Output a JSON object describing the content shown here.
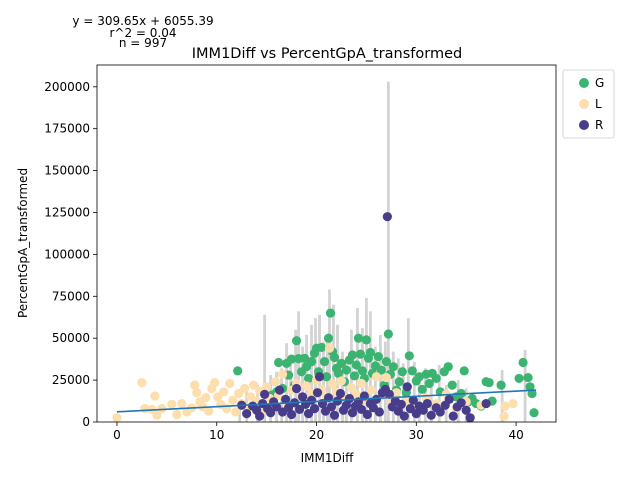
{
  "chart_data": {
    "type": "scatter",
    "title": "IMM1Diff vs PercentGpA_transformed",
    "xlabel": "IMM1Diff",
    "ylabel": "PercentGpA_transformed",
    "xlim": [
      -2,
      44
    ],
    "ylim": [
      0,
      213000
    ],
    "xticks": [
      0,
      10,
      20,
      30,
      40
    ],
    "yticks": [
      0,
      25000,
      50000,
      75000,
      100000,
      125000,
      150000,
      175000,
      200000
    ],
    "annotations": [
      "y = 309.65x + 6055.39",
      "r^2 = 0.04",
      "n = 997"
    ],
    "regression": {
      "slope": 309.65,
      "intercept": 6055.39,
      "x_range": [
        0,
        42
      ],
      "color": "#1f77b4"
    },
    "legend": {
      "placement": "outside-right",
      "entries": [
        "G",
        "L",
        "R"
      ]
    },
    "colors": {
      "G": "#3cb371",
      "L": "#ffdead",
      "R": "#483d8b",
      "bars": "#d3d3d3"
    },
    "bars": [
      [
        12.3,
        12000
      ],
      [
        13.0,
        18000
      ],
      [
        14.1,
        22000
      ],
      [
        14.8,
        64000
      ],
      [
        15.4,
        28000
      ],
      [
        16.0,
        30000
      ],
      [
        16.5,
        32000
      ],
      [
        17.0,
        47000
      ],
      [
        17.4,
        38000
      ],
      [
        17.9,
        55000
      ],
      [
        18.2,
        66000
      ],
      [
        18.6,
        45000
      ],
      [
        19.0,
        52000
      ],
      [
        19.5,
        58000
      ],
      [
        19.9,
        62000
      ],
      [
        20.3,
        64000
      ],
      [
        20.7,
        48000
      ],
      [
        21.1,
        52000
      ],
      [
        21.3,
        79000
      ],
      [
        21.7,
        70000
      ],
      [
        22.1,
        58000
      ],
      [
        22.6,
        42000
      ],
      [
        23.0,
        38000
      ],
      [
        23.5,
        55000
      ],
      [
        24.1,
        68000
      ],
      [
        24.6,
        56000
      ],
      [
        25.0,
        74000
      ],
      [
        25.4,
        66000
      ],
      [
        25.9,
        45000
      ],
      [
        26.4,
        52000
      ],
      [
        26.9,
        48000
      ],
      [
        27.2,
        203000
      ],
      [
        27.7,
        42000
      ],
      [
        28.2,
        38000
      ],
      [
        28.7,
        35000
      ],
      [
        29.2,
        62000
      ],
      [
        29.8,
        36000
      ],
      [
        30.3,
        28000
      ],
      [
        30.9,
        32000
      ],
      [
        31.5,
        25000
      ],
      [
        32.3,
        34000
      ],
      [
        33.0,
        22000
      ],
      [
        34.2,
        25000
      ],
      [
        35.0,
        20000
      ],
      [
        38.6,
        31000
      ],
      [
        40.9,
        43000
      ]
    ],
    "series": [
      {
        "name": "G",
        "points": [
          [
            12.1,
            30500
          ],
          [
            15.5,
            16000
          ],
          [
            16.0,
            18000
          ],
          [
            16.2,
            35500
          ],
          [
            16.6,
            20000
          ],
          [
            17.0,
            35000
          ],
          [
            17.2,
            28000
          ],
          [
            17.5,
            37500
          ],
          [
            17.8,
            22000
          ],
          [
            18.0,
            48500
          ],
          [
            18.2,
            37800
          ],
          [
            18.5,
            30000
          ],
          [
            18.8,
            38000
          ],
          [
            19.0,
            33000
          ],
          [
            19.2,
            26000
          ],
          [
            19.5,
            36000
          ],
          [
            19.8,
            41000
          ],
          [
            20.0,
            44000
          ],
          [
            20.2,
            30000
          ],
          [
            20.5,
            44500
          ],
          [
            20.8,
            36000
          ],
          [
            21.0,
            27000
          ],
          [
            21.2,
            50000
          ],
          [
            21.4,
            65000
          ],
          [
            21.6,
            42000
          ],
          [
            21.8,
            38500
          ],
          [
            22.0,
            32000
          ],
          [
            22.2,
            29000
          ],
          [
            22.5,
            35000
          ],
          [
            22.8,
            24000
          ],
          [
            23.0,
            31000
          ],
          [
            23.3,
            37000
          ],
          [
            23.6,
            40000
          ],
          [
            23.8,
            27500
          ],
          [
            24.0,
            34000
          ],
          [
            24.2,
            50000
          ],
          [
            24.4,
            40500
          ],
          [
            24.6,
            30500
          ],
          [
            24.8,
            26000
          ],
          [
            25.0,
            49000
          ],
          [
            25.2,
            38000
          ],
          [
            25.4,
            41500
          ],
          [
            25.6,
            29000
          ],
          [
            25.9,
            33500
          ],
          [
            26.2,
            39000
          ],
          [
            26.5,
            31000
          ],
          [
            26.8,
            22000
          ],
          [
            27.0,
            36000
          ],
          [
            27.2,
            52500
          ],
          [
            27.4,
            28500
          ],
          [
            27.7,
            33000
          ],
          [
            28.0,
            19000
          ],
          [
            28.3,
            24000
          ],
          [
            28.6,
            30000
          ],
          [
            29.0,
            17500
          ],
          [
            29.3,
            39500
          ],
          [
            29.6,
            30500
          ],
          [
            30.0,
            24500
          ],
          [
            30.3,
            27000
          ],
          [
            30.6,
            19500
          ],
          [
            31.0,
            28500
          ],
          [
            31.3,
            23000
          ],
          [
            31.6,
            29000
          ],
          [
            32.0,
            26000
          ],
          [
            32.4,
            18000
          ],
          [
            32.8,
            30000
          ],
          [
            33.2,
            33000
          ],
          [
            33.6,
            22000
          ],
          [
            34.0,
            15000
          ],
          [
            34.5,
            17000
          ],
          [
            34.8,
            30500
          ],
          [
            35.2,
            12000
          ],
          [
            35.6,
            14000
          ],
          [
            36.0,
            11000
          ],
          [
            36.5,
            9500
          ],
          [
            37.0,
            24000
          ],
          [
            37.3,
            23500
          ],
          [
            37.6,
            12500
          ],
          [
            38.5,
            22000
          ],
          [
            40.3,
            26000
          ],
          [
            40.7,
            35500
          ],
          [
            41.2,
            26500
          ],
          [
            41.4,
            21000
          ],
          [
            41.6,
            17000
          ],
          [
            41.8,
            5500
          ]
        ]
      },
      {
        "name": "L",
        "points": [
          [
            0.0,
            2500
          ],
          [
            2.5,
            23500
          ],
          [
            2.8,
            8000
          ],
          [
            3.5,
            7500
          ],
          [
            3.8,
            15500
          ],
          [
            4.0,
            4000
          ],
          [
            4.5,
            8000
          ],
          [
            5.5,
            10500
          ],
          [
            6.0,
            4500
          ],
          [
            6.5,
            11000
          ],
          [
            7.0,
            6000
          ],
          [
            7.5,
            8500
          ],
          [
            7.8,
            22000
          ],
          [
            8.0,
            17500
          ],
          [
            8.3,
            12000
          ],
          [
            8.6,
            9000
          ],
          [
            8.9,
            14500
          ],
          [
            9.2,
            6500
          ],
          [
            9.5,
            20000
          ],
          [
            9.8,
            23500
          ],
          [
            10.1,
            15000
          ],
          [
            10.4,
            10500
          ],
          [
            10.7,
            18000
          ],
          [
            11.0,
            8000
          ],
          [
            11.3,
            23000
          ],
          [
            11.6,
            13000
          ],
          [
            11.9,
            6000
          ],
          [
            12.2,
            17000
          ],
          [
            12.5,
            11000
          ],
          [
            12.8,
            20000
          ],
          [
            13.1,
            8500
          ],
          [
            13.4,
            15000
          ],
          [
            13.7,
            22000
          ],
          [
            14.0,
            12500
          ],
          [
            14.3,
            18500
          ],
          [
            14.6,
            7000
          ],
          [
            15.0,
            21000
          ],
          [
            15.3,
            14000
          ],
          [
            15.6,
            9500
          ],
          [
            15.9,
            24000
          ],
          [
            16.2,
            16000
          ],
          [
            16.6,
            28500
          ],
          [
            17.0,
            12000
          ],
          [
            17.5,
            19000
          ],
          [
            18.0,
            23000
          ],
          [
            18.5,
            14500
          ],
          [
            19.0,
            21500
          ],
          [
            19.5,
            17000
          ],
          [
            20.0,
            25000
          ],
          [
            20.5,
            19500
          ],
          [
            21.0,
            15000
          ],
          [
            21.3,
            44000
          ],
          [
            21.6,
            22500
          ],
          [
            22.0,
            18000
          ],
          [
            22.5,
            24500
          ],
          [
            23.0,
            14000
          ],
          [
            23.5,
            20500
          ],
          [
            24.0,
            16500
          ],
          [
            24.5,
            23000
          ],
          [
            25.0,
            12500
          ],
          [
            25.5,
            19000
          ],
          [
            26.0,
            27000
          ],
          [
            26.5,
            15500
          ],
          [
            27.0,
            26500
          ],
          [
            27.5,
            13000
          ],
          [
            28.0,
            17500
          ],
          [
            29.0,
            12000
          ],
          [
            30.0,
            9500
          ],
          [
            31.0,
            14000
          ],
          [
            32.0,
            11000
          ],
          [
            33.0,
            16500
          ],
          [
            34.0,
            8000
          ],
          [
            35.0,
            12000
          ],
          [
            36.5,
            10000
          ],
          [
            38.8,
            3500
          ],
          [
            38.9,
            9500
          ],
          [
            39.7,
            11000
          ]
        ]
      },
      {
        "name": "R",
        "points": [
          [
            12.5,
            10000
          ],
          [
            13.0,
            5000
          ],
          [
            13.6,
            9500
          ],
          [
            14.0,
            7000
          ],
          [
            14.3,
            3500
          ],
          [
            14.6,
            11000
          ],
          [
            14.8,
            16500
          ],
          [
            15.1,
            8000
          ],
          [
            15.4,
            5500
          ],
          [
            15.7,
            12000
          ],
          [
            16.0,
            9000
          ],
          [
            16.3,
            19000
          ],
          [
            16.6,
            6000
          ],
          [
            16.9,
            13500
          ],
          [
            17.2,
            8500
          ],
          [
            17.5,
            4500
          ],
          [
            17.8,
            11500
          ],
          [
            18.0,
            20000
          ],
          [
            18.3,
            7500
          ],
          [
            18.6,
            15000
          ],
          [
            18.9,
            10500
          ],
          [
            19.2,
            5000
          ],
          [
            19.5,
            13000
          ],
          [
            19.8,
            8000
          ],
          [
            20.1,
            17500
          ],
          [
            20.3,
            27000
          ],
          [
            20.6,
            11000
          ],
          [
            20.9,
            6500
          ],
          [
            21.2,
            14500
          ],
          [
            21.5,
            9000
          ],
          [
            21.8,
            4000
          ],
          [
            22.1,
            12500
          ],
          [
            22.4,
            17000
          ],
          [
            22.7,
            7000
          ],
          [
            23.0,
            10000
          ],
          [
            23.3,
            14000
          ],
          [
            23.6,
            5500
          ],
          [
            23.9,
            9500
          ],
          [
            24.2,
            12000
          ],
          [
            24.5,
            7500
          ],
          [
            24.8,
            15500
          ],
          [
            25.1,
            4500
          ],
          [
            25.4,
            11000
          ],
          [
            25.7,
            8500
          ],
          [
            26.0,
            13500
          ],
          [
            26.3,
            6000
          ],
          [
            26.6,
            17500
          ],
          [
            26.9,
            19500
          ],
          [
            27.1,
            122500
          ],
          [
            27.3,
            16500
          ],
          [
            27.6,
            9000
          ],
          [
            27.9,
            12500
          ],
          [
            28.2,
            6500
          ],
          [
            28.5,
            10500
          ],
          [
            28.8,
            3500
          ],
          [
            29.1,
            21000
          ],
          [
            29.4,
            8000
          ],
          [
            29.7,
            13000
          ],
          [
            30.0,
            5000
          ],
          [
            30.3,
            9500
          ],
          [
            30.7,
            7000
          ],
          [
            31.1,
            11000
          ],
          [
            31.5,
            4000
          ],
          [
            32.0,
            8500
          ],
          [
            32.4,
            6000
          ],
          [
            32.9,
            10000
          ],
          [
            33.3,
            13500
          ],
          [
            33.7,
            3500
          ],
          [
            34.1,
            9000
          ],
          [
            34.5,
            11500
          ],
          [
            35.0,
            7000
          ],
          [
            35.4,
            2500
          ],
          [
            37.0,
            11000
          ]
        ]
      }
    ]
  }
}
